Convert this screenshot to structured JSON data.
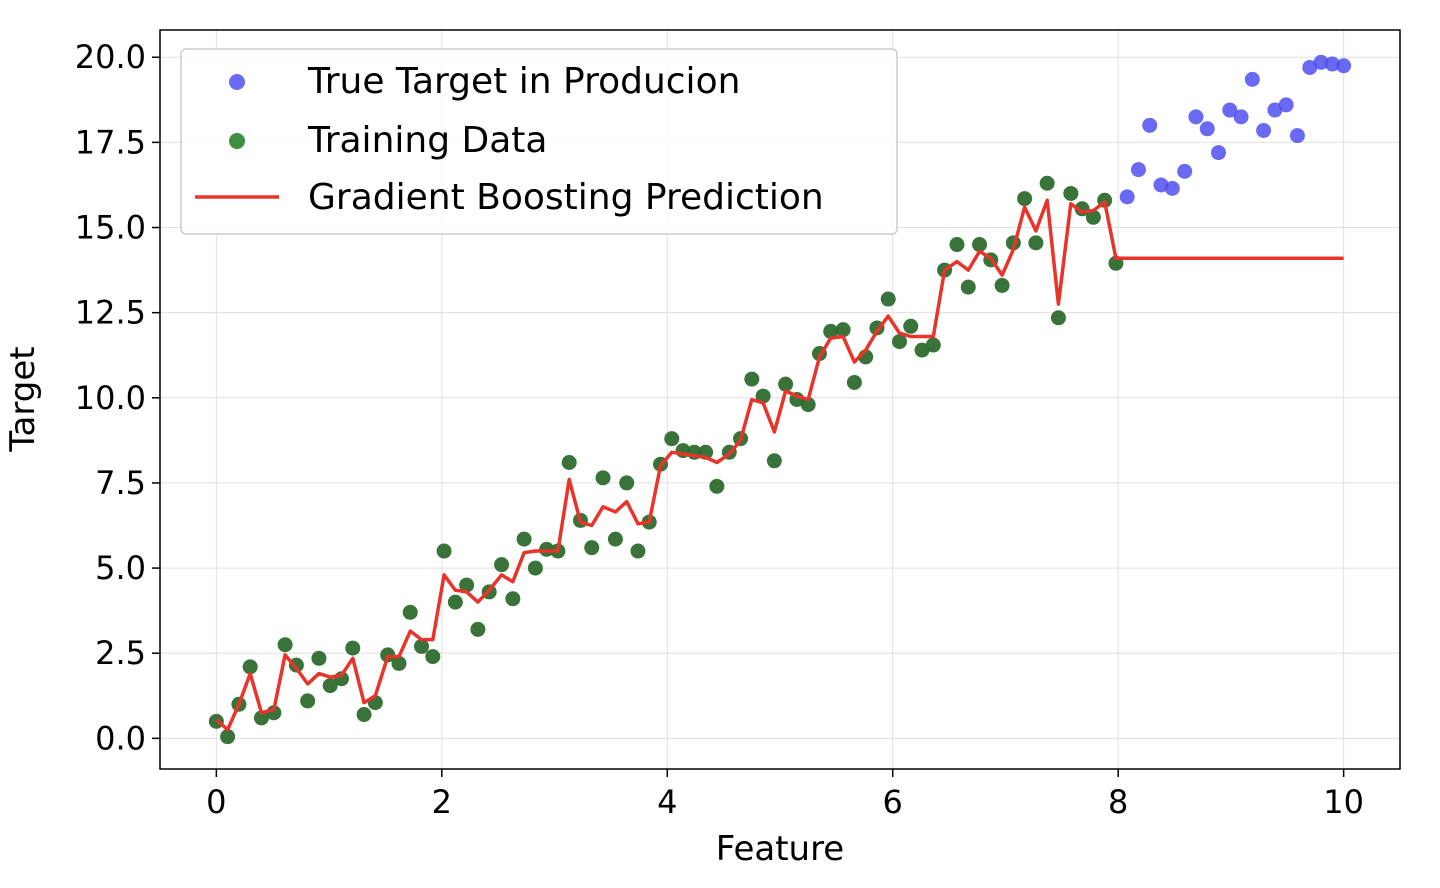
{
  "chart_data": {
    "type": "scatter",
    "xlabel": "Feature",
    "ylabel": "Target",
    "xlim": [
      -0.5,
      10.5
    ],
    "ylim": [
      -0.9,
      20.8
    ],
    "xticks": [
      0,
      2,
      4,
      6,
      8,
      10
    ],
    "xtick_labels": [
      "0",
      "2",
      "4",
      "6",
      "8",
      "10"
    ],
    "yticks": [
      0,
      2.5,
      5,
      7.5,
      10,
      12.5,
      15,
      17.5,
      20
    ],
    "ytick_labels": [
      "0.0",
      "2.5",
      "5.0",
      "7.5",
      "10.0",
      "12.5",
      "15.0",
      "17.5",
      "20.0"
    ],
    "grid": true,
    "legend_position": "top-left",
    "series": [
      {
        "name": "True Target in Producion",
        "kind": "scatter",
        "color": "#4f4ff0",
        "x": [
          8.08,
          8.18,
          8.28,
          8.38,
          8.48,
          8.59,
          8.69,
          8.79,
          8.89,
          8.99,
          9.09,
          9.19,
          9.29,
          9.39,
          9.49,
          9.59,
          9.7,
          9.8,
          9.9,
          10.0
        ],
        "y": [
          15.9,
          16.7,
          18.0,
          16.25,
          16.15,
          16.65,
          18.25,
          17.9,
          17.2,
          18.45,
          18.25,
          19.35,
          17.85,
          18.45,
          18.6,
          17.7,
          19.7,
          19.85,
          19.8,
          19.75
        ]
      },
      {
        "name": "Training Data",
        "kind": "scatter",
        "color": "#2e6b2e",
        "x": [
          0.0,
          0.1,
          0.2,
          0.3,
          0.4,
          0.51,
          0.61,
          0.71,
          0.81,
          0.91,
          1.01,
          1.11,
          1.21,
          1.31,
          1.41,
          1.52,
          1.62,
          1.72,
          1.82,
          1.92,
          2.02,
          2.12,
          2.22,
          2.32,
          2.42,
          2.53,
          2.63,
          2.73,
          2.83,
          2.93,
          3.03,
          3.13,
          3.23,
          3.33,
          3.43,
          3.54,
          3.64,
          3.74,
          3.84,
          3.94,
          4.04,
          4.14,
          4.24,
          4.34,
          4.44,
          4.55,
          4.65,
          4.75,
          4.85,
          4.95,
          5.05,
          5.15,
          5.25,
          5.35,
          5.45,
          5.56,
          5.66,
          5.76,
          5.86,
          5.96,
          6.06,
          6.16,
          6.26,
          6.36,
          6.46,
          6.57,
          6.67,
          6.77,
          6.87,
          6.97,
          7.07,
          7.17,
          7.27,
          7.37,
          7.47,
          7.58,
          7.68,
          7.78,
          7.88,
          7.98
        ],
        "y": [
          0.5,
          0.05,
          1.0,
          2.1,
          0.6,
          0.75,
          2.75,
          2.15,
          1.1,
          2.35,
          1.55,
          1.75,
          2.65,
          0.7,
          1.05,
          2.45,
          2.2,
          3.7,
          2.7,
          2.4,
          5.5,
          4.0,
          4.5,
          3.2,
          4.3,
          5.1,
          4.1,
          5.85,
          5.0,
          5.55,
          5.5,
          8.1,
          6.4,
          5.6,
          7.65,
          5.85,
          7.5,
          5.5,
          6.35,
          8.05,
          8.8,
          8.45,
          8.4,
          8.4,
          7.4,
          8.4,
          8.8,
          10.55,
          10.05,
          8.15,
          10.4,
          9.95,
          9.8,
          11.3,
          11.95,
          12.0,
          10.45,
          11.2,
          12.05,
          12.9,
          11.65,
          12.1,
          11.4,
          11.55,
          13.75,
          14.5,
          13.25,
          14.5,
          14.05,
          13.3,
          14.55,
          15.85,
          14.55,
          16.3,
          12.35,
          16.0,
          15.55,
          15.3,
          15.8,
          13.95
        ]
      },
      {
        "name": "Gradient Boosting Prediction",
        "kind": "line",
        "color": "#e8342a",
        "x": [
          0.0,
          0.1,
          0.2,
          0.3,
          0.4,
          0.51,
          0.61,
          0.71,
          0.81,
          0.91,
          1.01,
          1.11,
          1.21,
          1.31,
          1.41,
          1.52,
          1.62,
          1.72,
          1.82,
          1.92,
          2.02,
          2.12,
          2.22,
          2.32,
          2.42,
          2.53,
          2.63,
          2.73,
          2.83,
          2.93,
          3.03,
          3.13,
          3.23,
          3.33,
          3.43,
          3.54,
          3.64,
          3.74,
          3.84,
          3.94,
          4.04,
          4.14,
          4.24,
          4.34,
          4.44,
          4.55,
          4.65,
          4.75,
          4.85,
          4.95,
          5.05,
          5.15,
          5.25,
          5.35,
          5.45,
          5.56,
          5.66,
          5.76,
          5.86,
          5.96,
          6.06,
          6.16,
          6.26,
          6.36,
          6.46,
          6.57,
          6.67,
          6.77,
          6.87,
          6.97,
          7.07,
          7.17,
          7.27,
          7.37,
          7.47,
          7.58,
          7.68,
          7.78,
          7.88,
          7.98,
          8.08,
          10.0
        ],
        "y": [
          0.55,
          0.25,
          1.0,
          1.9,
          0.75,
          0.85,
          2.45,
          2.05,
          1.6,
          1.9,
          1.8,
          1.85,
          2.35,
          1.05,
          1.25,
          2.4,
          2.4,
          3.15,
          2.9,
          2.9,
          4.8,
          4.35,
          4.3,
          4.0,
          4.35,
          4.8,
          4.6,
          5.45,
          5.5,
          5.5,
          5.5,
          7.6,
          6.35,
          6.25,
          6.8,
          6.65,
          6.95,
          6.3,
          6.35,
          8.0,
          8.4,
          8.35,
          8.3,
          8.25,
          8.1,
          8.35,
          8.75,
          9.95,
          9.85,
          9.0,
          10.2,
          10.05,
          9.95,
          11.2,
          11.75,
          11.8,
          11.05,
          11.4,
          11.95,
          12.4,
          11.9,
          11.8,
          11.8,
          11.8,
          13.75,
          14.0,
          13.75,
          14.3,
          14.1,
          13.6,
          14.35,
          15.6,
          14.9,
          15.8,
          12.75,
          15.7,
          15.45,
          15.5,
          15.75,
          14.1,
          14.1,
          14.1
        ]
      }
    ]
  }
}
